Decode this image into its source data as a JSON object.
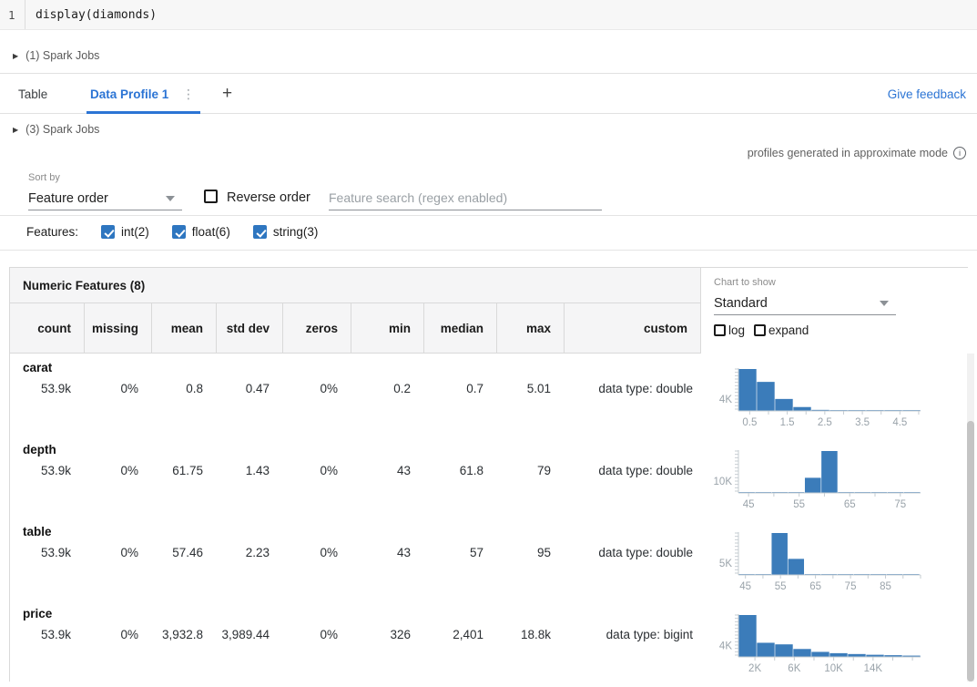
{
  "colors": {
    "accent_blue": "#2b74d4",
    "checkbox_blue": "#2e76c0",
    "bar_blue": "#3b7cba",
    "axis_gray": "#c6cdd2",
    "axis_label_gray": "#9aa3aa"
  },
  "code_cell": {
    "line_number": "1",
    "code": "display(diamonds)"
  },
  "spark_jobs_top": {
    "label": "(1) Spark Jobs"
  },
  "tab_bar": {
    "tabs": [
      {
        "label": "Table"
      },
      {
        "label": "Data Profile 1"
      }
    ],
    "add_label": "+",
    "kebab_icon": "⋮",
    "feedback_link": "Give feedback"
  },
  "spark_jobs_inner": {
    "label": "(3) Spark Jobs"
  },
  "approx_note": {
    "text": "profiles generated in approximate mode"
  },
  "controls": {
    "sort_by_label": "Sort by",
    "sort_by_value": "Feature order",
    "reverse_order": {
      "label": "Reverse order",
      "checked": false
    },
    "search_placeholder": "Feature search (regex enabled)",
    "features_label": "Features:",
    "feature_filters": [
      {
        "label": "int(2)",
        "checked": true
      },
      {
        "label": "float(6)",
        "checked": true
      },
      {
        "label": "string(3)",
        "checked": true
      }
    ]
  },
  "table": {
    "title": "Numeric Features (8)",
    "columns": [
      "count",
      "missing",
      "mean",
      "std dev",
      "zeros",
      "min",
      "median",
      "max",
      "custom"
    ],
    "chart_controls": {
      "label": "Chart to show",
      "value": "Standard",
      "options_checkboxes": [
        {
          "label": "log",
          "checked": false
        },
        {
          "label": "expand",
          "checked": false
        }
      ]
    },
    "rows": [
      {
        "feature": "carat",
        "count": "53.9k",
        "missing": "0%",
        "mean": "0.8",
        "std_dev": "0.47",
        "zeros": "0%",
        "min": "0.2",
        "median": "0.7",
        "max": "5.01",
        "custom": "data type: double"
      },
      {
        "feature": "depth",
        "count": "53.9k",
        "missing": "0%",
        "mean": "61.75",
        "std_dev": "1.43",
        "zeros": "0%",
        "min": "43",
        "median": "61.8",
        "max": "79",
        "custom": "data type: double"
      },
      {
        "feature": "table",
        "count": "53.9k",
        "missing": "0%",
        "mean": "57.46",
        "std_dev": "2.23",
        "zeros": "0%",
        "min": "43",
        "median": "57",
        "max": "95",
        "custom": "data type: double"
      },
      {
        "feature": "price",
        "count": "53.9k",
        "missing": "0%",
        "mean": "3,932.8",
        "std_dev": "3,989.44",
        "zeros": "0%",
        "min": "326",
        "median": "2,401",
        "max": "18.8k",
        "custom": "data type: bigint"
      }
    ]
  },
  "chart_data": [
    {
      "type": "bar",
      "feature": "carat",
      "y_ref": {
        "label": "4K",
        "value": 4000
      },
      "x_axis": {
        "min": 0.2,
        "max": 5.05,
        "ticks": [
          0.5,
          1.5,
          2.5,
          3.5,
          4.5
        ],
        "tick_labels": [
          "0.5",
          "1.5",
          "2.5",
          "3.5",
          "4.5"
        ],
        "minor_step": 0.5
      },
      "bins": {
        "start": 0.2,
        "width": 0.485,
        "counts": [
          14000,
          9700,
          4000,
          1300,
          350,
          250,
          170,
          120,
          90,
          60
        ]
      }
    },
    {
      "type": "bar",
      "feature": "depth",
      "y_ref": {
        "label": "10K",
        "value": 10000
      },
      "x_axis": {
        "min": 43,
        "max": 79,
        "ticks": [
          45,
          55,
          65,
          75
        ],
        "tick_labels": [
          "45",
          "55",
          "65",
          "75"
        ],
        "minor_step": 5
      },
      "bins": {
        "start": 43,
        "width": 3.27,
        "counts": [
          40,
          50,
          90,
          250,
          13000,
          36000,
          700,
          150,
          70,
          40,
          30
        ]
      }
    },
    {
      "type": "bar",
      "feature": "table",
      "y_ref": {
        "label": "5K",
        "value": 5000
      },
      "x_axis": {
        "min": 43,
        "max": 95,
        "ticks": [
          45,
          55,
          65,
          75,
          85
        ],
        "tick_labels": [
          "45",
          "55",
          "65",
          "75",
          "85"
        ],
        "minor_step": 5
      },
      "bins": {
        "start": 43,
        "width": 4.7,
        "counts": [
          50,
          70,
          18000,
          6900,
          200,
          90,
          60,
          45,
          35,
          25,
          20
        ]
      }
    },
    {
      "type": "bar",
      "feature": "price",
      "y_ref": {
        "label": "4K",
        "value": 4000
      },
      "x_axis": {
        "min": 326,
        "max": 18823,
        "ticks": [
          2000,
          6000,
          10000,
          14000
        ],
        "tick_labels": [
          "2K",
          "6K",
          "10K",
          "14K"
        ],
        "minor_step": 2000
      },
      "bins": {
        "start": 326,
        "width": 1849.7,
        "counts": [
          14500,
          4900,
          4350,
          2750,
          1750,
          1300,
          1000,
          750,
          600,
          450
        ]
      }
    }
  ]
}
